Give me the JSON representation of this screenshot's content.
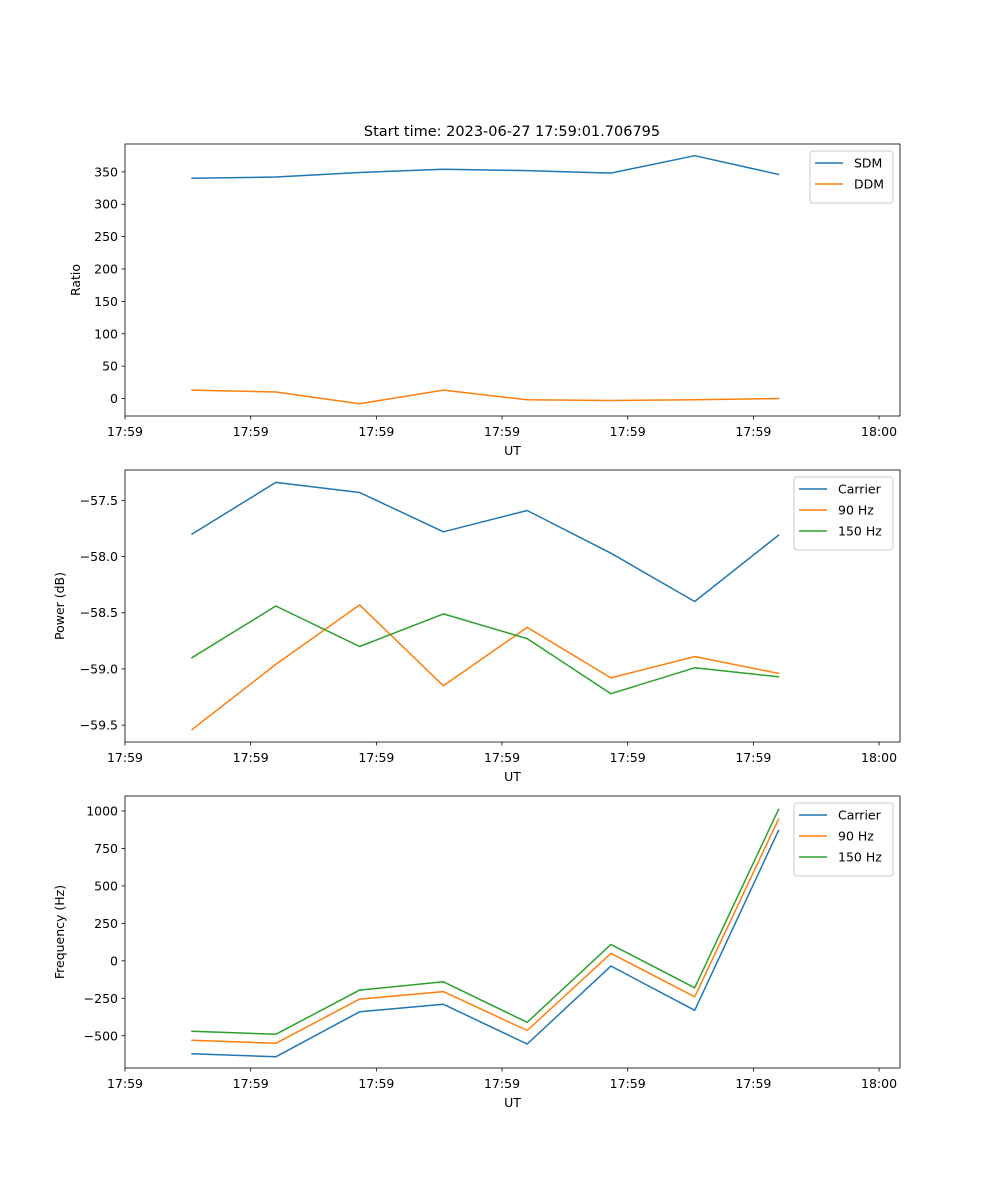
{
  "figure": {
    "title": "Start time: 2023-06-27 17:59:01.706795"
  },
  "colors": {
    "blue": "#1f77b4",
    "orange": "#ff7f0e",
    "green": "#2ca02c"
  },
  "chart_data": [
    {
      "type": "line",
      "xlabel": "UT",
      "ylabel": "Ratio",
      "x_tick_labels": [
        "17:59",
        "17:59",
        "17:59",
        "17:59",
        "17:59",
        "17:59",
        "18:00"
      ],
      "xlim": [
        0,
        9.25
      ],
      "x": [
        0.8,
        1.8,
        2.8,
        3.8,
        4.8,
        5.8,
        6.8,
        7.8
      ],
      "ylim": [
        -27,
        393
      ],
      "yticks": [
        0,
        50,
        100,
        150,
        200,
        250,
        300,
        350
      ],
      "legend": "upper right",
      "series": [
        {
          "name": "SDM",
          "color": "#1f77b4",
          "values": [
            340,
            342,
            349,
            354,
            352,
            348,
            375,
            346
          ]
        },
        {
          "name": "DDM",
          "color": "#ff7f0e",
          "values": [
            13,
            10,
            -8,
            13,
            -2,
            -3,
            -2,
            0
          ]
        }
      ]
    },
    {
      "type": "line",
      "xlabel": "UT",
      "ylabel": "Power (dB)",
      "x_tick_labels": [
        "17:59",
        "17:59",
        "17:59",
        "17:59",
        "17:59",
        "17:59",
        "18:00"
      ],
      "xlim": [
        0,
        9.25
      ],
      "x": [
        0.8,
        1.8,
        2.8,
        3.8,
        4.8,
        5.8,
        6.8,
        7.8
      ],
      "ylim": [
        -59.65,
        -57.23
      ],
      "yticks": [
        -59.5,
        -59.0,
        -58.5,
        -58.0,
        -57.5
      ],
      "ytick_labels": [
        "−59.5",
        "−59.0",
        "−58.5",
        "−58.0",
        "−57.5"
      ],
      "legend": "upper right",
      "series": [
        {
          "name": "Carrier",
          "color": "#1f77b4",
          "values": [
            -57.8,
            -57.34,
            -57.43,
            -57.78,
            -57.59,
            -57.97,
            -58.4,
            -57.81
          ]
        },
        {
          "name": "90 Hz",
          "color": "#ff7f0e",
          "values": [
            -59.54,
            -58.96,
            -58.43,
            -59.15,
            -58.63,
            -59.08,
            -58.89,
            -59.04
          ]
        },
        {
          "name": "150 Hz",
          "color": "#2ca02c",
          "values": [
            -58.9,
            -58.44,
            -58.8,
            -58.51,
            -58.73,
            -59.22,
            -58.99,
            -59.07
          ]
        }
      ]
    },
    {
      "type": "line",
      "xlabel": "UT",
      "ylabel": "Frequency (Hz)",
      "x_tick_labels": [
        "17:59",
        "17:59",
        "17:59",
        "17:59",
        "17:59",
        "17:59",
        "18:00"
      ],
      "xlim": [
        0,
        9.25
      ],
      "x": [
        0.8,
        1.8,
        2.8,
        3.8,
        4.8,
        5.8,
        6.8,
        7.8
      ],
      "ylim": [
        -715,
        1100
      ],
      "yticks": [
        -500,
        -250,
        0,
        250,
        500,
        750,
        1000
      ],
      "ytick_labels": [
        "−500",
        "−250",
        "0",
        "250",
        "500",
        "750",
        "1000"
      ],
      "legend": "upper right",
      "series": [
        {
          "name": "Carrier",
          "color": "#1f77b4",
          "values": [
            -620,
            -640,
            -340,
            -290,
            -555,
            -35,
            -330,
            870
          ]
        },
        {
          "name": "90 Hz",
          "color": "#ff7f0e",
          "values": [
            -530,
            -550,
            -255,
            -205,
            -465,
            50,
            -240,
            945
          ]
        },
        {
          "name": "150 Hz",
          "color": "#2ca02c",
          "values": [
            -470,
            -490,
            -195,
            -140,
            -410,
            110,
            -180,
            1010
          ]
        }
      ]
    }
  ]
}
